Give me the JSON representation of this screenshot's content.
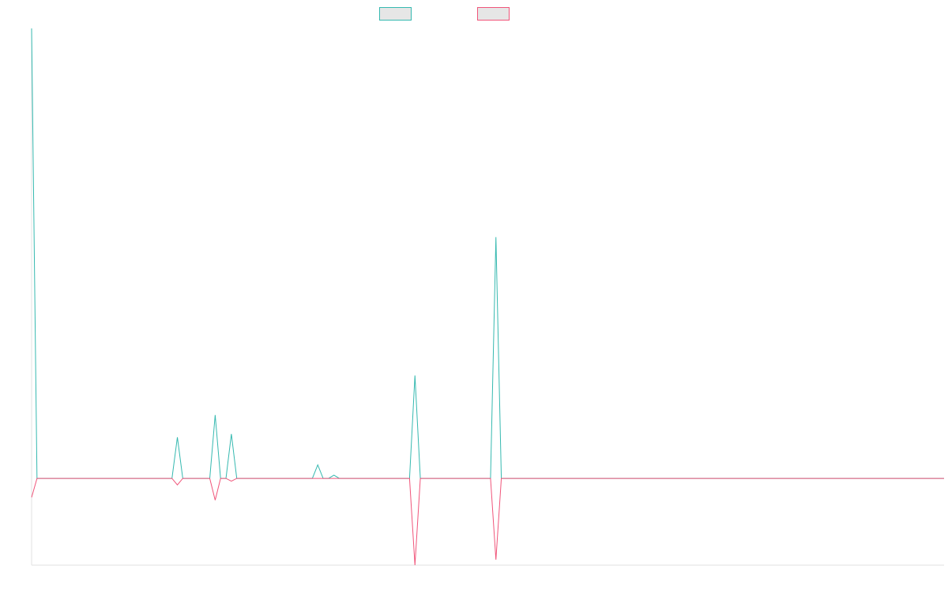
{
  "chart_data": {
    "type": "line",
    "title": "",
    "xlabel": "",
    "ylabel": "",
    "grid": false,
    "legend_position": "top-center",
    "xlim": [
      0,
      169
    ],
    "ylim": [
      -16,
      83
    ],
    "x": [
      0,
      1,
      2,
      3,
      4,
      5,
      6,
      7,
      8,
      9,
      10,
      11,
      12,
      13,
      14,
      15,
      16,
      17,
      18,
      19,
      20,
      21,
      22,
      23,
      24,
      25,
      26,
      27,
      28,
      29,
      30,
      31,
      32,
      33,
      34,
      35,
      36,
      37,
      38,
      39,
      40,
      41,
      42,
      43,
      44,
      45,
      46,
      47,
      48,
      49,
      50,
      51,
      52,
      53,
      54,
      55,
      56,
      57,
      58,
      59,
      60,
      61,
      62,
      63,
      64,
      65,
      66,
      67,
      68,
      69,
      70,
      71,
      72,
      73,
      74,
      75,
      76,
      77,
      78,
      79,
      80,
      81,
      82,
      83,
      84,
      85,
      86,
      87,
      88,
      89,
      90,
      91,
      92,
      93,
      94,
      95,
      96,
      97,
      98,
      99,
      100,
      101,
      102,
      103,
      104,
      105,
      106,
      107,
      108,
      109,
      110,
      111,
      112,
      113,
      114,
      115,
      116,
      117,
      118,
      119,
      120,
      121,
      122,
      123,
      124,
      125,
      126,
      127,
      128,
      129,
      130,
      131,
      132,
      133,
      134,
      135,
      136,
      137,
      138,
      139,
      140,
      141,
      142,
      143,
      144,
      145,
      146,
      147,
      148,
      149,
      150,
      151,
      152,
      153,
      154,
      155,
      156,
      157,
      158,
      159,
      160,
      161,
      162,
      163,
      164,
      165,
      166,
      167,
      168,
      169
    ],
    "series": [
      {
        "color": "#36b9b0",
        "values": [
          83,
          0,
          0,
          0,
          0,
          0,
          0,
          0,
          0,
          0,
          0,
          0,
          0,
          0,
          0,
          0,
          0,
          0,
          0,
          0,
          0,
          0,
          0,
          0,
          0,
          0,
          0,
          7.6,
          0,
          0,
          0,
          0,
          0,
          0,
          11.7,
          0,
          0,
          8.2,
          0,
          0,
          0,
          0,
          0,
          0,
          0,
          0,
          0,
          0,
          0,
          0,
          0,
          0,
          0,
          2.5,
          0,
          0,
          0.6,
          0,
          0,
          0,
          0,
          0,
          0,
          0,
          0,
          0,
          0,
          0,
          0,
          0,
          0,
          19,
          0,
          0,
          0,
          0,
          0,
          0,
          0,
          0,
          0,
          0,
          0,
          0,
          0,
          0,
          44.5,
          0,
          0,
          0,
          0,
          0,
          0,
          0,
          0,
          0,
          0,
          0,
          0,
          0,
          0,
          0,
          0,
          0,
          0,
          0,
          0,
          0,
          0,
          0,
          0,
          0,
          0,
          0,
          0,
          0,
          0,
          0,
          0,
          0,
          0,
          0,
          0,
          0,
          0,
          0,
          0,
          0,
          0,
          0,
          0,
          0,
          0,
          0,
          0,
          0,
          0,
          0,
          0,
          0,
          0,
          0,
          0,
          0,
          0,
          0,
          0,
          0,
          0,
          0,
          0,
          0,
          0,
          0,
          0,
          0,
          0,
          0,
          0,
          0,
          0,
          0,
          0,
          0,
          0,
          0,
          0,
          0,
          0,
          0
        ]
      },
      {
        "color": "#f0557a",
        "values": [
          -3.5,
          0,
          0,
          0,
          0,
          0,
          0,
          0,
          0,
          0,
          0,
          0,
          0,
          0,
          0,
          0,
          0,
          0,
          0,
          0,
          0,
          0,
          0,
          0,
          0,
          0,
          0,
          -1.2,
          0,
          0,
          0,
          0,
          0,
          0,
          -4,
          0,
          0,
          -0.5,
          0,
          0,
          0,
          0,
          0,
          0,
          0,
          0,
          0,
          0,
          0,
          0,
          0,
          0,
          0,
          0,
          0,
          0,
          0,
          0,
          0,
          0,
          0,
          0,
          0,
          0,
          0,
          0,
          0,
          0,
          0,
          0,
          0,
          -16,
          0,
          0,
          0,
          0,
          0,
          0,
          0,
          0,
          0,
          0,
          0,
          0,
          0,
          0,
          -15,
          0,
          0,
          0,
          0,
          0,
          0,
          0,
          0,
          0,
          0,
          0,
          0,
          0,
          0,
          0,
          0,
          0,
          0,
          0,
          0,
          0,
          0,
          0,
          0,
          0,
          0,
          0,
          0,
          0,
          0,
          0,
          0,
          0,
          0,
          0,
          0,
          0,
          0,
          0,
          0,
          0,
          0,
          0,
          0,
          0,
          0,
          0,
          0,
          0,
          0,
          0,
          0,
          0,
          0,
          0,
          0,
          0,
          0,
          0,
          0,
          0,
          0,
          0,
          0,
          0,
          0,
          0,
          0,
          0,
          0,
          0,
          0,
          0,
          0,
          0,
          0,
          0,
          0,
          0,
          0,
          0,
          0,
          0
        ]
      }
    ]
  }
}
